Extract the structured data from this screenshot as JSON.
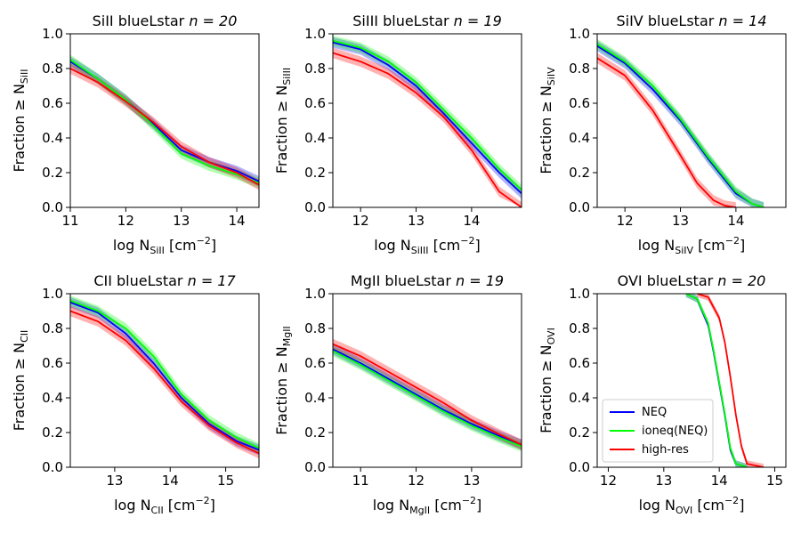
{
  "colors": {
    "neq": "#0000ff",
    "ioneq": "#00ff00",
    "highres": "#ff0000",
    "frame": "#000000"
  },
  "legend": {
    "location": "lower-left",
    "panel": 5,
    "entries": [
      {
        "label": "NEQ",
        "color": "#0000ff"
      },
      {
        "label": "ioneq(NEQ)",
        "color": "#00ff00"
      },
      {
        "label": "high-res",
        "color": "#ff0000"
      }
    ]
  },
  "chart_data": [
    {
      "type": "line",
      "title_pre": "SiII blueLstar ",
      "title_n": "n = 20",
      "ylabel_pre": "Fraction ≥ N",
      "ylabel_sub": "SiII",
      "xlabel_pre": "log N",
      "xlabel_sub": "SiII",
      "xlabel_unit": " [cm",
      "xlabel_exp": "−2",
      "xlabel_end": "]",
      "xlim": [
        11.0,
        14.4
      ],
      "ylim": [
        0,
        1.0
      ],
      "xticks": [
        11,
        12,
        13,
        14
      ],
      "xtick_labels": [
        "11",
        "12",
        "13",
        "14"
      ],
      "yticks": [
        0,
        0.2,
        0.4,
        0.6,
        0.8,
        1.0
      ],
      "ytick_labels": [
        "0.0",
        "0.2",
        "0.4",
        "0.6",
        "0.8",
        "1.0"
      ],
      "band": 0.03,
      "series": [
        {
          "name": "NEQ",
          "x": [
            11.0,
            11.5,
            12.0,
            12.5,
            13.0,
            13.5,
            14.0,
            14.4
          ],
          "y": [
            0.84,
            0.74,
            0.62,
            0.48,
            0.33,
            0.26,
            0.21,
            0.15
          ]
        },
        {
          "name": "ioneq(NEQ)",
          "x": [
            11.0,
            11.5,
            12.0,
            12.5,
            13.0,
            13.5,
            14.0,
            14.4
          ],
          "y": [
            0.85,
            0.74,
            0.62,
            0.47,
            0.31,
            0.24,
            0.19,
            0.14
          ]
        },
        {
          "name": "high-res",
          "x": [
            11.0,
            11.5,
            12.0,
            12.5,
            13.0,
            13.5,
            14.0,
            14.4
          ],
          "y": [
            0.8,
            0.72,
            0.61,
            0.49,
            0.35,
            0.26,
            0.2,
            0.13
          ]
        }
      ]
    },
    {
      "type": "line",
      "title_pre": "SiIII blueLstar ",
      "title_n": "n = 19",
      "ylabel_pre": "Fraction ≥ N",
      "ylabel_sub": "SiIII",
      "xlabel_pre": "log N",
      "xlabel_sub": "SiIII",
      "xlabel_unit": " [cm",
      "xlabel_exp": "−2",
      "xlabel_end": "]",
      "xlim": [
        11.5,
        14.9
      ],
      "ylim": [
        0,
        1.0
      ],
      "xticks": [
        12,
        13,
        14
      ],
      "xtick_labels": [
        "12",
        "13",
        "14"
      ],
      "yticks": [
        0,
        0.2,
        0.4,
        0.6,
        0.8,
        1.0
      ],
      "ytick_labels": [
        "0.0",
        "0.2",
        "0.4",
        "0.6",
        "0.8",
        "1.0"
      ],
      "band": 0.03,
      "series": [
        {
          "name": "NEQ",
          "x": [
            11.5,
            12.0,
            12.5,
            13.0,
            13.5,
            14.0,
            14.5,
            14.9
          ],
          "y": [
            0.95,
            0.91,
            0.82,
            0.7,
            0.54,
            0.37,
            0.2,
            0.08
          ]
        },
        {
          "name": "ioneq(NEQ)",
          "x": [
            11.5,
            12.0,
            12.5,
            13.0,
            13.5,
            14.0,
            14.5,
            14.9
          ],
          "y": [
            0.96,
            0.92,
            0.84,
            0.72,
            0.56,
            0.4,
            0.22,
            0.1
          ]
        },
        {
          "name": "high-res",
          "x": [
            11.5,
            12.0,
            12.5,
            13.0,
            13.5,
            14.0,
            14.5,
            14.9
          ],
          "y": [
            0.89,
            0.84,
            0.77,
            0.66,
            0.52,
            0.33,
            0.09,
            0.0
          ]
        }
      ]
    },
    {
      "type": "line",
      "title_pre": "SiIV blueLstar ",
      "title_n": "n = 14",
      "ylabel_pre": "Fraction ≥ N",
      "ylabel_sub": "SiIV",
      "xlabel_pre": "log N",
      "xlabel_sub": "SiIV",
      "xlabel_unit": " [cm",
      "xlabel_exp": "−2",
      "xlabel_end": "]",
      "xlim": [
        11.5,
        14.9
      ],
      "ylim": [
        0,
        1.0
      ],
      "xticks": [
        12,
        13,
        14
      ],
      "xtick_labels": [
        "12",
        "13",
        "14"
      ],
      "yticks": [
        0,
        0.2,
        0.4,
        0.6,
        0.8,
        1.0
      ],
      "ytick_labels": [
        "0.0",
        "0.2",
        "0.4",
        "0.6",
        "0.8",
        "1.0"
      ],
      "band": 0.03,
      "series": [
        {
          "name": "NEQ",
          "x": [
            11.5,
            12.0,
            12.5,
            13.0,
            13.5,
            14.0,
            14.3,
            14.5
          ],
          "y": [
            0.93,
            0.83,
            0.68,
            0.5,
            0.28,
            0.08,
            0.02,
            0.0
          ]
        },
        {
          "name": "ioneq(NEQ)",
          "x": [
            11.5,
            12.0,
            12.5,
            13.0,
            13.5,
            14.0,
            14.3,
            14.5
          ],
          "y": [
            0.94,
            0.84,
            0.7,
            0.51,
            0.29,
            0.09,
            0.02,
            0.0
          ]
        },
        {
          "name": "high-res",
          "x": [
            11.5,
            12.0,
            12.5,
            13.0,
            13.3,
            13.6,
            13.8,
            14.0
          ],
          "y": [
            0.86,
            0.76,
            0.56,
            0.3,
            0.14,
            0.04,
            0.01,
            0.0
          ]
        }
      ]
    },
    {
      "type": "line",
      "title_pre": "CII blueLstar ",
      "title_n": "n = 17",
      "ylabel_pre": "Fraction ≥ N",
      "ylabel_sub": "CII",
      "xlabel_pre": "log N",
      "xlabel_sub": "CII",
      "xlabel_unit": " [cm",
      "xlabel_exp": "−2",
      "xlabel_end": "]",
      "xlim": [
        12.2,
        15.6
      ],
      "ylim": [
        0,
        1.0
      ],
      "xticks": [
        13,
        14,
        15
      ],
      "xtick_labels": [
        "13",
        "14",
        "15"
      ],
      "yticks": [
        0,
        0.2,
        0.4,
        0.6,
        0.8,
        1.0
      ],
      "ytick_labels": [
        "0.0",
        "0.2",
        "0.4",
        "0.6",
        "0.8",
        "1.0"
      ],
      "band": 0.03,
      "series": [
        {
          "name": "NEQ",
          "x": [
            12.2,
            12.7,
            13.2,
            13.7,
            14.2,
            14.7,
            15.2,
            15.6
          ],
          "y": [
            0.95,
            0.89,
            0.77,
            0.6,
            0.4,
            0.25,
            0.15,
            0.1
          ]
        },
        {
          "name": "ioneq(NEQ)",
          "x": [
            12.2,
            12.7,
            13.2,
            13.7,
            14.2,
            14.7,
            15.2,
            15.6
          ],
          "y": [
            0.96,
            0.9,
            0.8,
            0.64,
            0.42,
            0.27,
            0.17,
            0.11
          ]
        },
        {
          "name": "high-res",
          "x": [
            12.2,
            12.7,
            13.2,
            13.7,
            14.2,
            14.7,
            15.2,
            15.6
          ],
          "y": [
            0.9,
            0.84,
            0.73,
            0.57,
            0.38,
            0.24,
            0.14,
            0.08
          ]
        }
      ]
    },
    {
      "type": "line",
      "title_pre": "MgII blueLstar ",
      "title_n": "n = 19",
      "ylabel_pre": "Fraction ≥ N",
      "ylabel_sub": "MgII",
      "xlabel_pre": "log N",
      "xlabel_sub": "MgII",
      "xlabel_unit": " [cm",
      "xlabel_exp": "−2",
      "xlabel_end": "]",
      "xlim": [
        10.5,
        13.9
      ],
      "ylim": [
        0,
        1.0
      ],
      "xticks": [
        11,
        12,
        13
      ],
      "xtick_labels": [
        "11",
        "12",
        "13"
      ],
      "yticks": [
        0,
        0.2,
        0.4,
        0.6,
        0.8,
        1.0
      ],
      "ytick_labels": [
        "0.0",
        "0.2",
        "0.4",
        "0.6",
        "0.8",
        "1.0"
      ],
      "band": 0.03,
      "series": [
        {
          "name": "NEQ",
          "x": [
            10.5,
            11.0,
            11.5,
            12.0,
            12.5,
            13.0,
            13.5,
            13.9
          ],
          "y": [
            0.68,
            0.6,
            0.51,
            0.42,
            0.33,
            0.25,
            0.18,
            0.13
          ]
        },
        {
          "name": "ioneq(NEQ)",
          "x": [
            10.5,
            11.0,
            11.5,
            12.0,
            12.5,
            13.0,
            13.5,
            13.9
          ],
          "y": [
            0.67,
            0.59,
            0.5,
            0.41,
            0.32,
            0.24,
            0.17,
            0.12
          ]
        },
        {
          "name": "high-res",
          "x": [
            10.5,
            11.0,
            11.5,
            12.0,
            12.5,
            13.0,
            13.5,
            13.9
          ],
          "y": [
            0.71,
            0.64,
            0.55,
            0.46,
            0.37,
            0.27,
            0.19,
            0.13
          ]
        }
      ]
    },
    {
      "type": "line",
      "title_pre": "OVI blueLstar ",
      "title_n": "n = 20",
      "ylabel_pre": "Fraction ≥ N",
      "ylabel_sub": "OVI",
      "xlabel_pre": "log N",
      "xlabel_sub": "OVI",
      "xlabel_unit": " [cm",
      "xlabel_exp": "−2",
      "xlabel_end": "]",
      "xlim": [
        11.8,
        15.2
      ],
      "ylim": [
        0,
        1.0
      ],
      "xticks": [
        12,
        13,
        14,
        15
      ],
      "xtick_labels": [
        "12",
        "13",
        "14",
        "15"
      ],
      "yticks": [
        0,
        0.2,
        0.4,
        0.6,
        0.8,
        1.0
      ],
      "ytick_labels": [
        "0.0",
        "0.2",
        "0.4",
        "0.6",
        "0.8",
        "1.0"
      ],
      "band": 0.02,
      "series": [
        {
          "name": "NEQ",
          "x": [
            13.4,
            13.6,
            13.8,
            13.9,
            14.0,
            14.1,
            14.2,
            14.3,
            14.5
          ],
          "y": [
            1.0,
            0.97,
            0.82,
            0.66,
            0.48,
            0.3,
            0.1,
            0.02,
            0.0
          ]
        },
        {
          "name": "ioneq(NEQ)",
          "x": [
            13.4,
            13.6,
            13.8,
            13.9,
            14.0,
            14.1,
            14.2,
            14.3,
            14.5
          ],
          "y": [
            1.0,
            0.97,
            0.83,
            0.67,
            0.49,
            0.31,
            0.11,
            0.02,
            0.0
          ]
        },
        {
          "name": "high-res",
          "x": [
            13.6,
            13.8,
            14.0,
            14.1,
            14.2,
            14.3,
            14.4,
            14.5,
            14.8
          ],
          "y": [
            1.0,
            0.98,
            0.86,
            0.72,
            0.52,
            0.3,
            0.12,
            0.02,
            0.0
          ]
        }
      ]
    }
  ]
}
